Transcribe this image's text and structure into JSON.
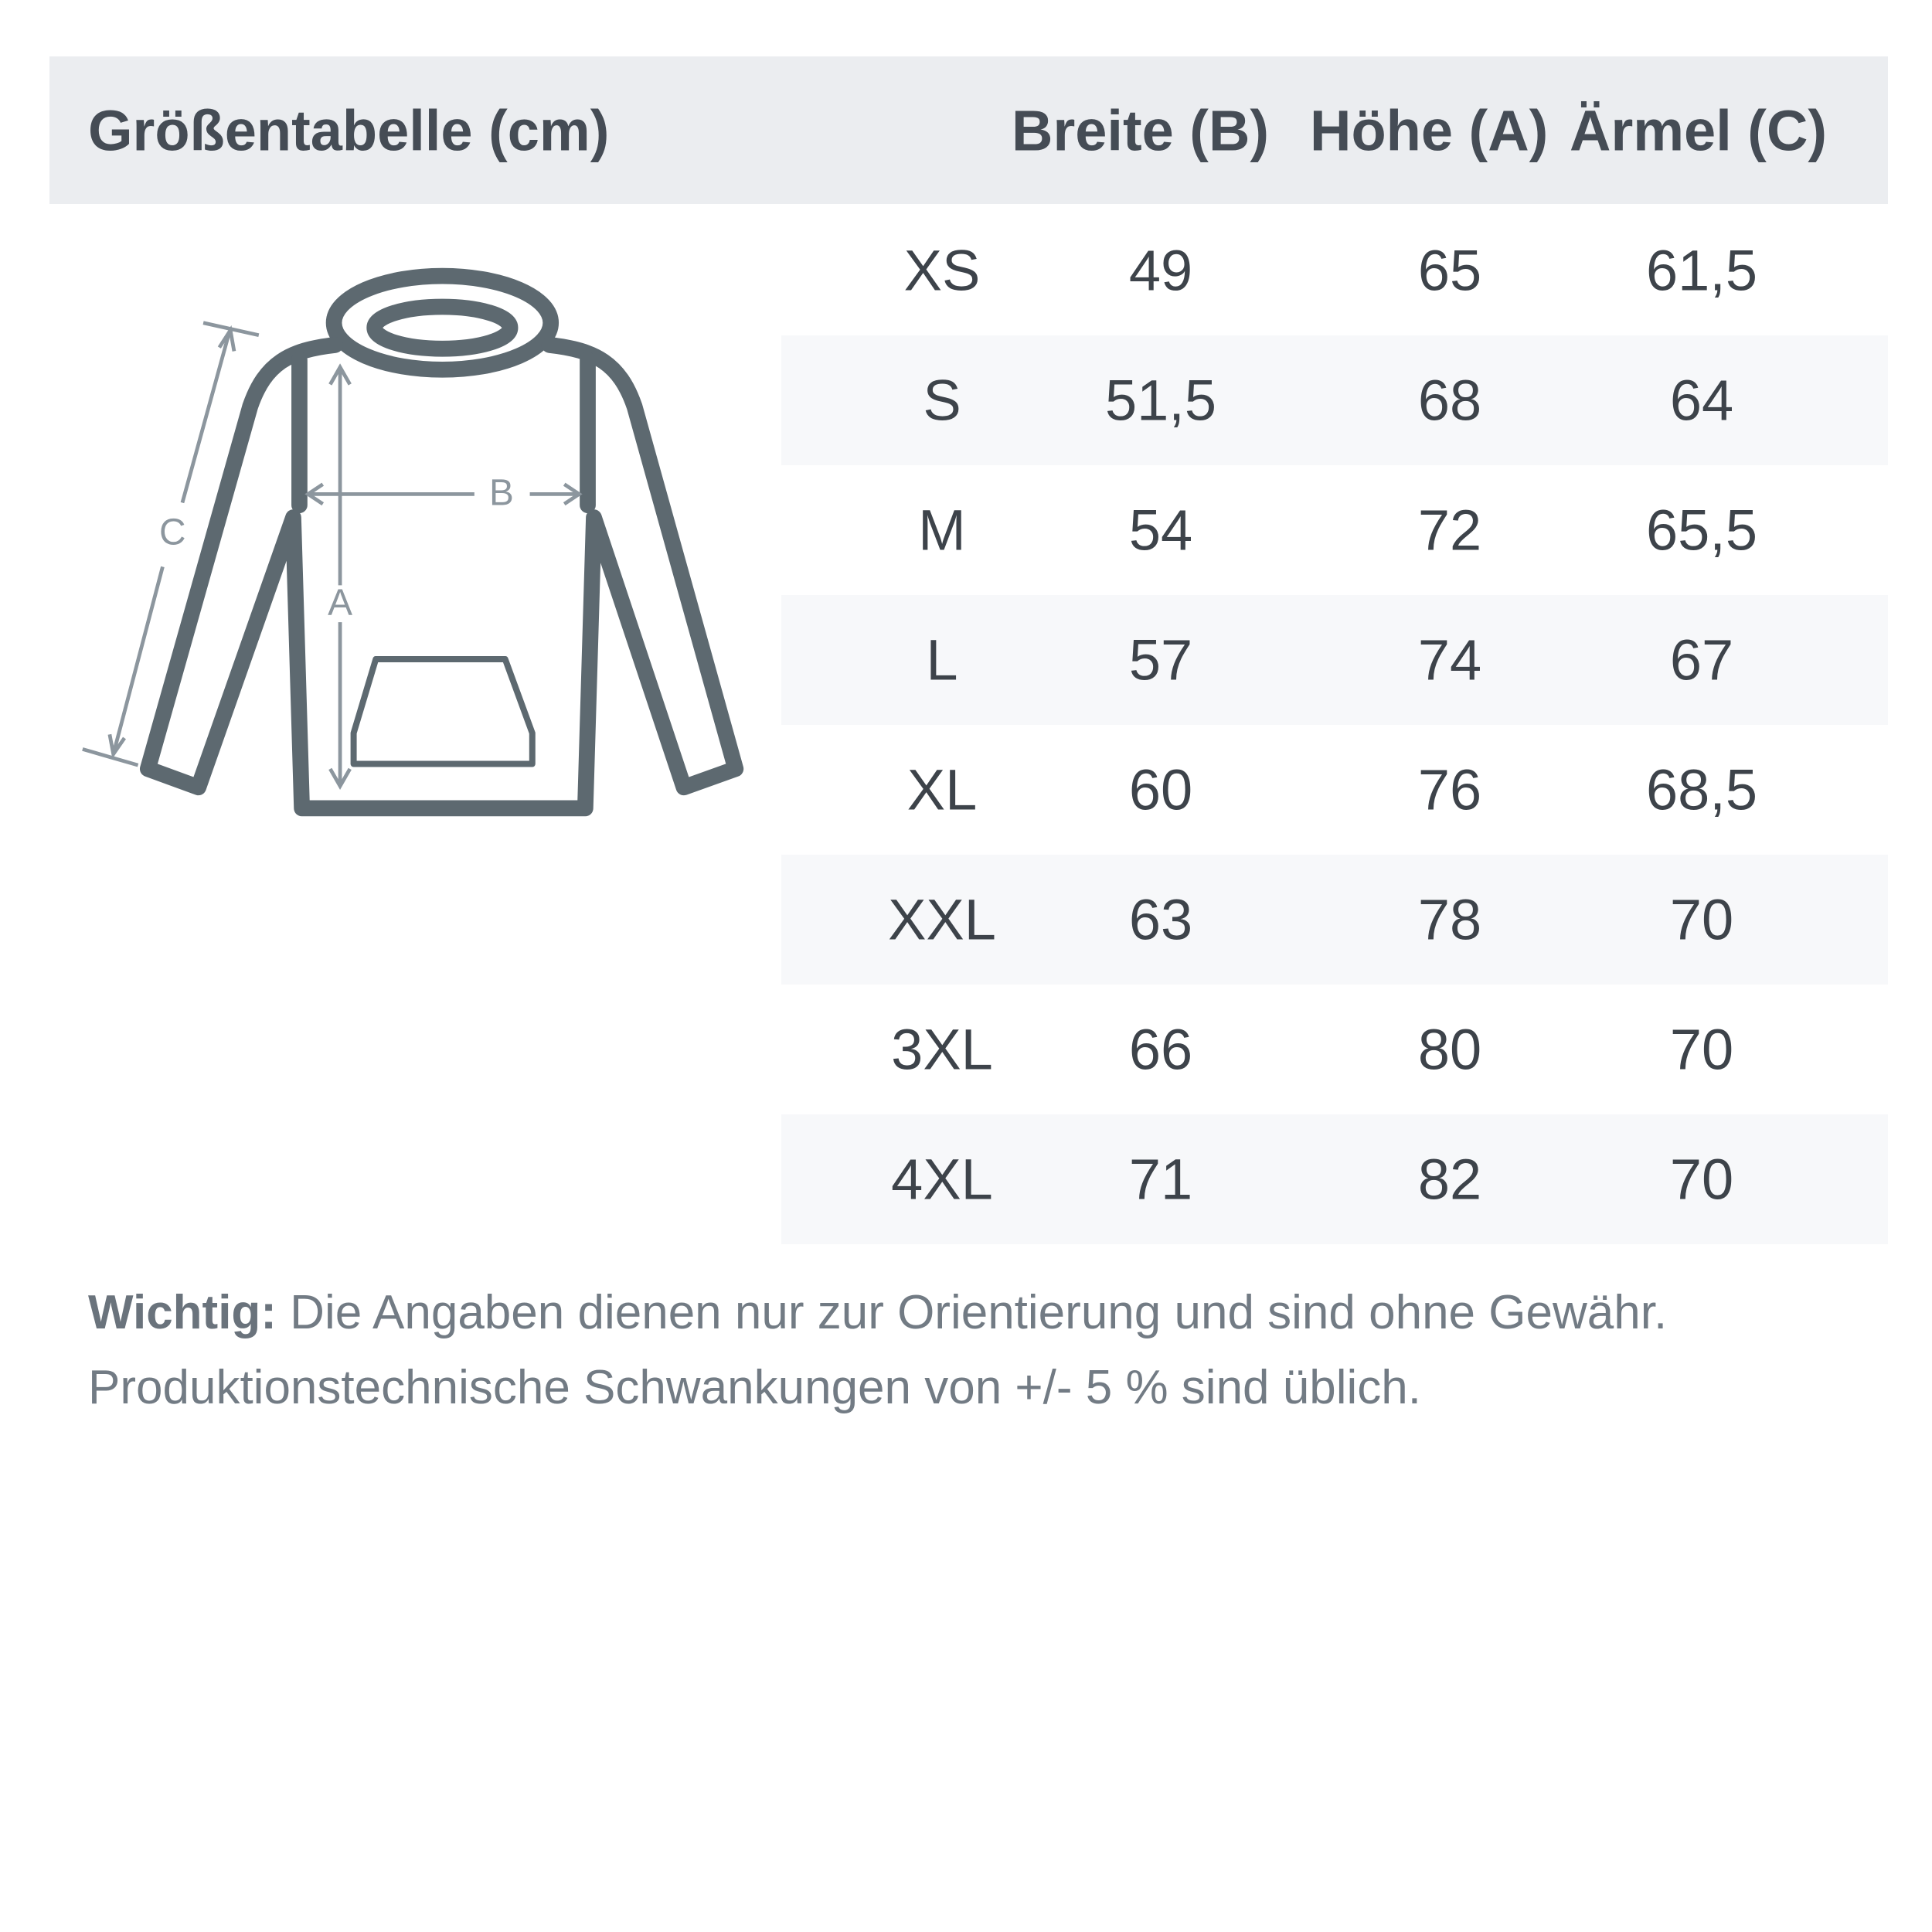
{
  "header": {
    "title": "Größentabelle (cm)",
    "columns": [
      "Breite (B)",
      "Höhe (A)",
      "Ärmel (C)"
    ]
  },
  "diagram": {
    "labels": {
      "a": "A",
      "b": "B",
      "c": "C"
    }
  },
  "rows": [
    {
      "size": "XS",
      "breite": "49",
      "hoehe": "65",
      "aermel": "61,5"
    },
    {
      "size": "S",
      "breite": "51,5",
      "hoehe": "68",
      "aermel": "64"
    },
    {
      "size": "M",
      "breite": "54",
      "hoehe": "72",
      "aermel": "65,5"
    },
    {
      "size": "L",
      "breite": "57",
      "hoehe": "74",
      "aermel": "67"
    },
    {
      "size": "XL",
      "breite": "60",
      "hoehe": "76",
      "aermel": "68,5"
    },
    {
      "size": "XXL",
      "breite": "63",
      "hoehe": "78",
      "aermel": "70"
    },
    {
      "size": "3XL",
      "breite": "66",
      "hoehe": "80",
      "aermel": "70"
    },
    {
      "size": "4XL",
      "breite": "71",
      "hoehe": "82",
      "aermel": "70"
    }
  ],
  "note": {
    "bold": "Wichtig:",
    "line1": " Die Angaben dienen nur zur Orientierung und sind ohne Gewähr.",
    "line2": "Produktionstechnische Schwankungen von +/- 5 % sind üblich."
  }
}
